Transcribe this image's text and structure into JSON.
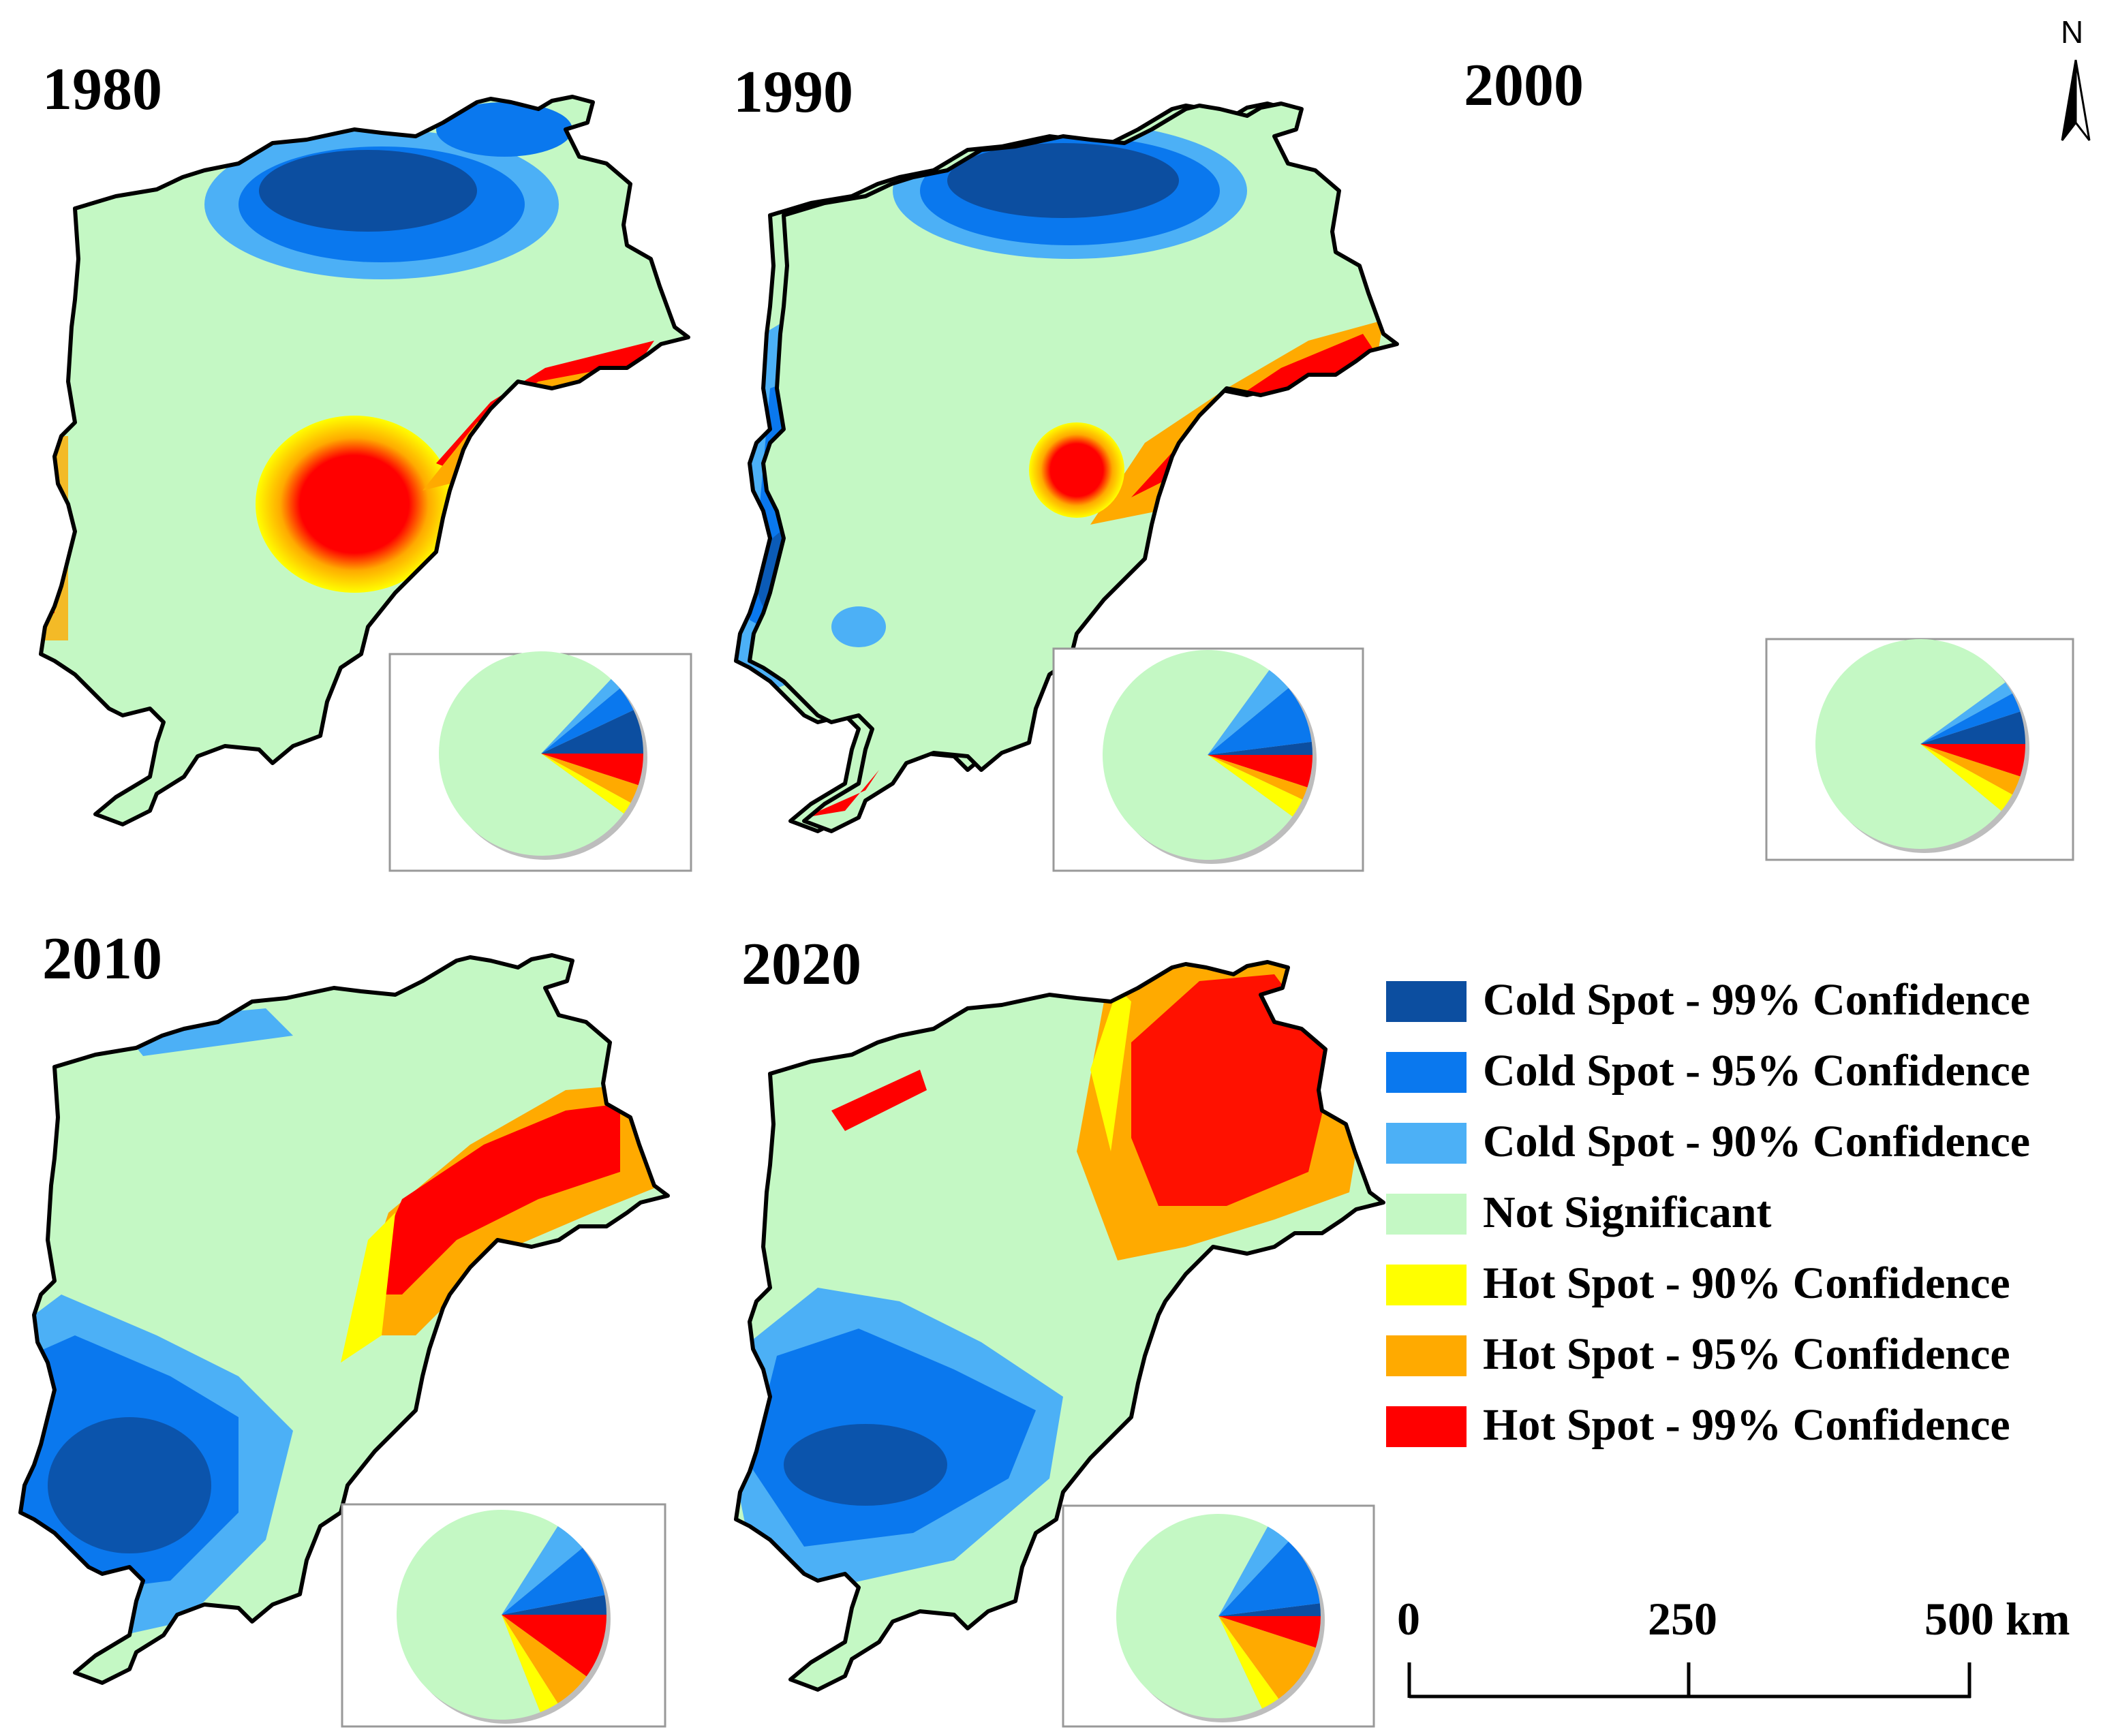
{
  "years": [
    "1980",
    "1990",
    "2000",
    "2010",
    "2020"
  ],
  "north_label": "N",
  "legend": [
    {
      "label": "Cold Spot - 99% Confidence",
      "color": "#0c4ea0"
    },
    {
      "label": "Cold Spot - 95% Confidence",
      "color": "#0a78ee"
    },
    {
      "label": "Cold Spot - 90% Confidence",
      "color": "#4cb0f6"
    },
    {
      "label": "Not Significant",
      "color": "#c4f8c4"
    },
    {
      "label": "Hot Spot - 90% Confidence",
      "color": "#ffff00"
    },
    {
      "label": "Hot Spot - 95% Confidence",
      "color": "#ffaa00"
    },
    {
      "label": "Hot Spot - 99% Confidence",
      "color": "#ff0000"
    }
  ],
  "scale_bar": {
    "labels": [
      "0",
      "250",
      "500 km"
    ]
  },
  "pies": [
    {
      "year": "1980",
      "shares": [
        7,
        4,
        2,
        77,
        2,
        3,
        5
      ]
    },
    {
      "year": "1990",
      "shares": [
        2,
        9,
        4,
        75,
        3,
        2,
        5
      ]
    },
    {
      "year": "2000",
      "shares": [
        5,
        3,
        2,
        79,
        3,
        3,
        5
      ]
    },
    {
      "year": "2010",
      "shares": [
        3,
        8,
        5,
        65,
        3,
        6,
        10
      ]
    },
    {
      "year": "2020",
      "shares": [
        2,
        11,
        4,
        65,
        3,
        10,
        5
      ]
    }
  ]
}
